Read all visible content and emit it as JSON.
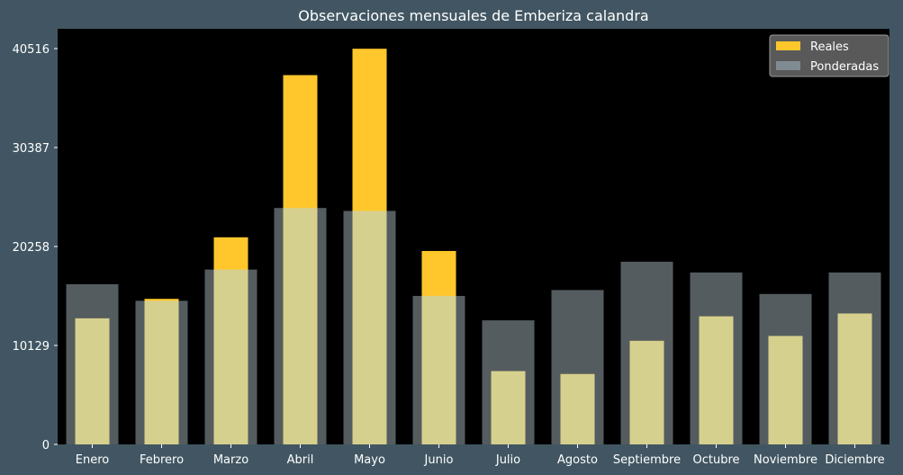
{
  "chart_data": {
    "type": "bar",
    "title": "Observaciones mensuales de Emberiza calandra",
    "xlabel": "",
    "ylabel": "",
    "categories": [
      "Enero",
      "Febrero",
      "Marzo",
      "Abril",
      "Mayo",
      "Junio",
      "Julio",
      "Agosto",
      "Septiembre",
      "Octubre",
      "Noviembre",
      "Diciembre"
    ],
    "series": [
      {
        "name": "Reales",
        "color": "#ffc72c",
        "values": [
          12900,
          14900,
          21200,
          37800,
          40500,
          19800,
          7500,
          7200,
          10600,
          13100,
          11100,
          13400
        ]
      },
      {
        "name": "Ponderadas",
        "color": "#87949b",
        "values": [
          16400,
          14700,
          17900,
          24200,
          23900,
          15200,
          12700,
          15800,
          18700,
          17600,
          15400,
          17600
        ]
      }
    ],
    "overlap_color": "#d6d08f",
    "ylim": [
      0,
      40516
    ],
    "yticks": [
      0,
      10129,
      20258,
      30387,
      40516
    ],
    "legend_position": "top-right",
    "grid": false,
    "plot_background": "#000000",
    "page_background": "#415662"
  }
}
